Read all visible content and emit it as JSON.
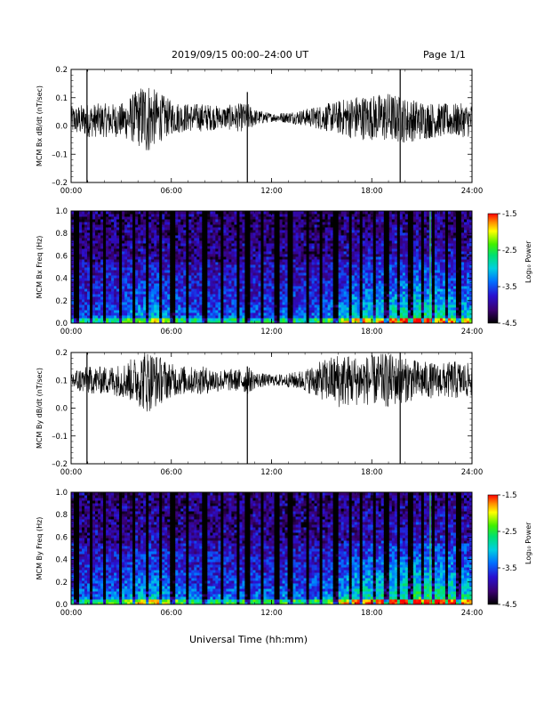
{
  "header": {
    "title": "2019/09/15  00:00–24:00 UT",
    "page": "Page 1/1"
  },
  "xaxis_title": "Universal Time (hh:mm)",
  "colorbar": {
    "label": "Log₁₀ Power",
    "ticks": [
      "-1.5",
      "-2.5",
      "-3.5",
      "-4.5"
    ]
  },
  "chart_data": [
    {
      "type": "line",
      "title": "",
      "xlabel": "",
      "ylabel": "MCM Bx dB/dt (nT/sec)",
      "xlim": [
        0,
        24
      ],
      "x_tick_labels": [
        "00:00",
        "06:00",
        "12:00",
        "18:00",
        "24:00"
      ],
      "ylim": [
        -0.2,
        0.2
      ],
      "y_tick_labels": [
        "0.2",
        "0.1",
        "0.0",
        "–0.1",
        "–0.2"
      ],
      "series": [
        {
          "x": [
            0,
            1,
            2,
            3,
            4,
            4.5,
            5,
            6,
            7,
            8,
            9,
            10,
            10.6,
            11,
            12,
            13,
            14,
            15,
            16,
            17,
            18,
            19,
            20,
            21,
            22,
            23,
            24
          ],
          "center": [
            0.02,
            0.02,
            0.02,
            0.02,
            0.03,
            0.03,
            0.03,
            0.03,
            0.03,
            0.03,
            0.03,
            0.03,
            0.03,
            0.03,
            0.03,
            0.03,
            0.03,
            0.03,
            0.03,
            0.03,
            0.03,
            0.03,
            0.02,
            0.02,
            0.02,
            0.02,
            0.02
          ],
          "amplitude": [
            0.05,
            0.06,
            0.06,
            0.06,
            0.1,
            0.14,
            0.1,
            0.06,
            0.05,
            0.05,
            0.04,
            0.05,
            0.05,
            0.03,
            0.015,
            0.02,
            0.03,
            0.045,
            0.06,
            0.08,
            0.08,
            0.09,
            0.08,
            0.07,
            0.06,
            0.06,
            0.06
          ],
          "spikes": [
            {
              "x": 0.95,
              "y_min": -0.2,
              "y_max": 0.2
            },
            {
              "x": 10.55,
              "y_min": -0.2,
              "y_max": 0.12
            },
            {
              "x": 19.7,
              "y_min": -0.2,
              "y_max": 0.2
            }
          ]
        }
      ]
    },
    {
      "type": "heatmap",
      "title": "",
      "xlabel": "",
      "ylabel": "MCM Bx Freq (Hz)",
      "xlim": [
        0,
        24
      ],
      "x_tick_labels": [
        "00:00",
        "06:00",
        "12:00",
        "18:00",
        "24:00"
      ],
      "ylim": [
        0,
        1.0
      ],
      "y_tick_labels": [
        "1.0",
        "0.8",
        "0.6",
        "0.4",
        "0.2",
        "0.0"
      ],
      "zlim": [
        -4.5,
        -1.5
      ],
      "zlabel": "Log₁₀ Power",
      "activity_profile": [
        0.25,
        0.3,
        0.3,
        0.35,
        0.45,
        0.5,
        0.4,
        0.3,
        0.3,
        0.3,
        0.3,
        0.3,
        0.3,
        0.35,
        0.3,
        0.35,
        0.45,
        0.55,
        0.6,
        0.65,
        0.7,
        0.7,
        0.65,
        0.6,
        0.55
      ],
      "dark_streak_times": [
        0.3,
        1.2,
        2.0,
        3.0,
        3.8,
        4.6,
        5.4,
        6.1,
        7.0,
        8.0,
        9.0,
        10.0,
        10.6,
        11.4,
        12.3,
        13.1,
        14.2,
        15.0,
        15.8,
        16.7,
        17.4,
        18.2,
        18.9,
        19.6,
        20.3,
        21.0,
        21.7,
        22.5,
        23.2
      ],
      "bright_line_time": 21.5
    },
    {
      "type": "line",
      "title": "",
      "xlabel": "",
      "ylabel": "MCM By dB/dt (nT/sec)",
      "xlim": [
        0,
        24
      ],
      "x_tick_labels": [
        "00:00",
        "06:00",
        "12:00",
        "18:00",
        "24:00"
      ],
      "ylim": [
        -0.2,
        0.2
      ],
      "y_tick_labels": [
        "0.2",
        "0.1",
        "0.0",
        "–0.1",
        "–0.2"
      ],
      "series": [
        {
          "x": [
            0,
            1,
            2,
            3,
            4,
            4.5,
            5,
            6,
            7,
            8,
            9,
            10,
            10.6,
            11,
            12,
            13,
            14,
            15,
            16,
            17,
            18,
            19,
            20,
            21,
            22,
            23,
            24
          ],
          "center": [
            0.1,
            0.1,
            0.1,
            0.1,
            0.1,
            0.1,
            0.1,
            0.1,
            0.1,
            0.1,
            0.1,
            0.1,
            0.1,
            0.1,
            0.1,
            0.1,
            0.1,
            0.1,
            0.1,
            0.1,
            0.1,
            0.1,
            0.1,
            0.1,
            0.1,
            0.1,
            0.1
          ],
          "amplitude": [
            0.04,
            0.05,
            0.05,
            0.06,
            0.09,
            0.12,
            0.1,
            0.06,
            0.05,
            0.05,
            0.04,
            0.04,
            0.05,
            0.03,
            0.02,
            0.025,
            0.04,
            0.07,
            0.1,
            0.09,
            0.09,
            0.1,
            0.08,
            0.07,
            0.06,
            0.07,
            0.06
          ],
          "spikes": [
            {
              "x": 0.95,
              "y_min": -0.2,
              "y_max": 0.2
            },
            {
              "x": 10.55,
              "y_min": -0.2,
              "y_max": 0.15
            },
            {
              "x": 19.7,
              "y_min": -0.2,
              "y_max": 0.2
            }
          ]
        }
      ]
    },
    {
      "type": "heatmap",
      "title": "",
      "xlabel": "",
      "ylabel": "MCM By Freq (Hz)",
      "xlim": [
        0,
        24
      ],
      "x_tick_labels": [
        "00:00",
        "06:00",
        "12:00",
        "18:00",
        "24:00"
      ],
      "ylim": [
        0,
        1.0
      ],
      "y_tick_labels": [
        "1.0",
        "0.8",
        "0.6",
        "0.4",
        "0.2",
        "0.0"
      ],
      "zlim": [
        -4.5,
        -1.5
      ],
      "zlabel": "Log₁₀ Power",
      "activity_profile": [
        0.3,
        0.35,
        0.35,
        0.4,
        0.5,
        0.55,
        0.45,
        0.35,
        0.35,
        0.35,
        0.35,
        0.35,
        0.35,
        0.4,
        0.35,
        0.4,
        0.5,
        0.6,
        0.65,
        0.7,
        0.75,
        0.8,
        0.75,
        0.7,
        0.6
      ],
      "dark_streak_times": [
        0.3,
        1.2,
        2.0,
        3.0,
        3.8,
        4.6,
        5.4,
        6.1,
        7.0,
        8.0,
        9.0,
        10.0,
        10.6,
        11.4,
        12.3,
        13.1,
        14.2,
        15.0,
        15.8,
        16.7,
        17.4,
        18.2,
        18.9,
        19.6,
        20.3,
        21.0,
        21.7,
        22.5,
        23.2
      ],
      "bright_line_time": 21.5
    }
  ]
}
